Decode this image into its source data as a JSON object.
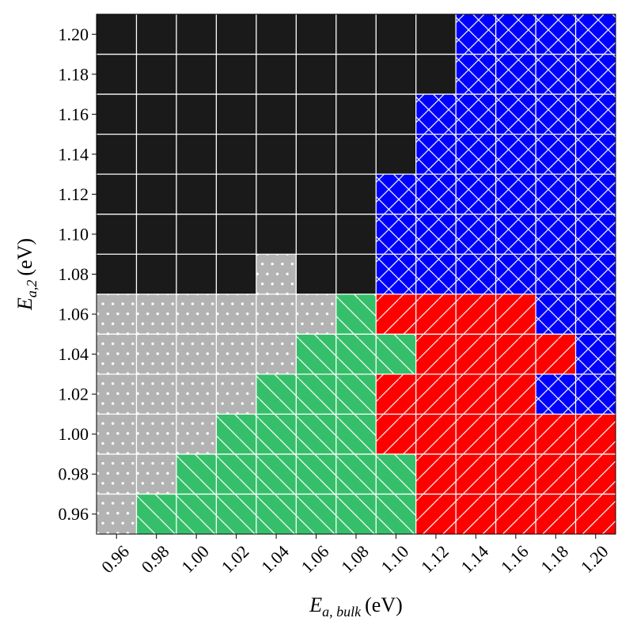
{
  "chart_data": {
    "type": "heatmap",
    "title": "",
    "xlabel": {
      "base": "E",
      "sub": "a, bulk",
      "unit": "(eV)"
    },
    "ylabel": {
      "base": "E",
      "sub": "a,2",
      "unit": "(eV)"
    },
    "x": [
      "0.96",
      "0.98",
      "1.00",
      "1.02",
      "1.04",
      "1.06",
      "1.08",
      "1.10",
      "1.12",
      "1.14",
      "1.16",
      "1.18",
      "1.20"
    ],
    "y": [
      "0.96",
      "0.98",
      "1.00",
      "1.02",
      "1.04",
      "1.06",
      "1.08",
      "1.10",
      "1.12",
      "1.14",
      "1.16",
      "1.18",
      "1.20"
    ],
    "xlim": [
      0.95,
      1.21
    ],
    "ylim": [
      0.95,
      1.21
    ],
    "grid": true,
    "categories": [
      {
        "id": "K",
        "color": "#1a1a1a",
        "pattern": "none"
      },
      {
        "id": "D",
        "color": "#b3b3b3",
        "pattern": "dots"
      },
      {
        "id": "G",
        "color": "#36bf6a",
        "pattern": "backslash"
      },
      {
        "id": "R",
        "color": "#ff0000",
        "pattern": "slash"
      },
      {
        "id": "B",
        "color": "#0000ff",
        "pattern": "cross"
      }
    ],
    "grid_rows_top_to_bottom": [
      "KKKKKKKKKBBBB",
      "KKKKKKKKKBBBB",
      "KKKKKKKKBBBBB",
      "KKKKKKKKBBBBB",
      "KKKKKKKBBBBBB",
      "KKKKKKKBBBBBB",
      "KKKKDKKBBBBBB",
      "DDDDDDGRRRRBB",
      "DDDDDGGGRRRRB",
      "DDDDGGGRRRRBB",
      "DDDGGGGRRRRRR",
      "DDGGGGGGRRRRR",
      "DGGGGGGGRRRRR"
    ]
  }
}
